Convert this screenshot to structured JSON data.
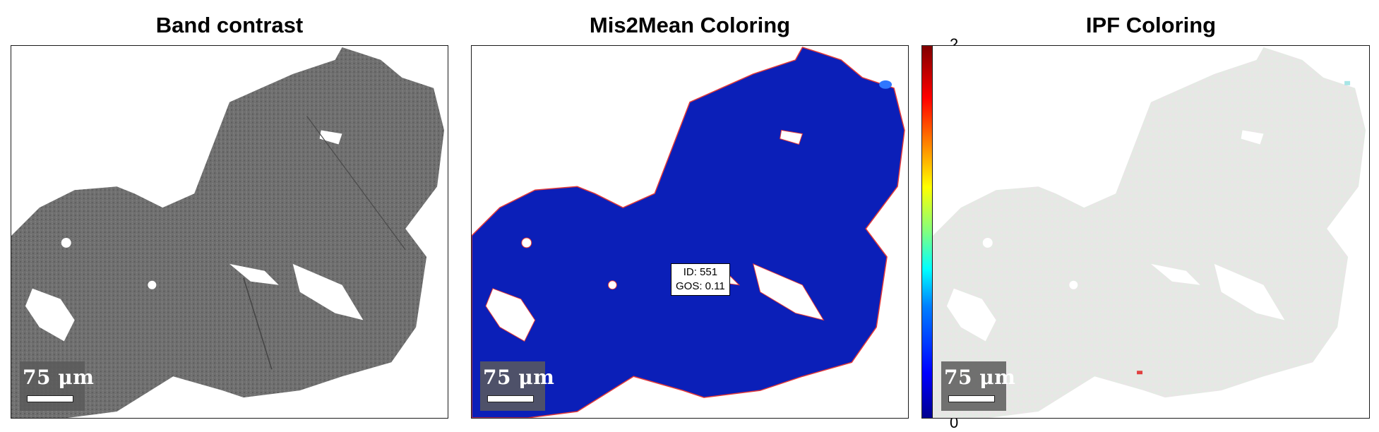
{
  "panels": [
    {
      "title": "Band contrast",
      "scalebar": "75 μm"
    },
    {
      "title": "Mis2Mean Coloring",
      "scalebar": "75 μm"
    },
    {
      "title": "IPF Coloring",
      "scalebar": "75 μm"
    }
  ],
  "grain_label": {
    "id_text": "ID: 551",
    "gos_text": "GOS: 0.11"
  },
  "colorbar": {
    "max_label": "2",
    "min_label": "0"
  },
  "colors": {
    "band_fill": "#6e6e6e",
    "mis2mean_fill": "#0b1fb8",
    "mis2mean_boundary": "#e23a3a",
    "ipf_fill": "#e6e8e4"
  }
}
